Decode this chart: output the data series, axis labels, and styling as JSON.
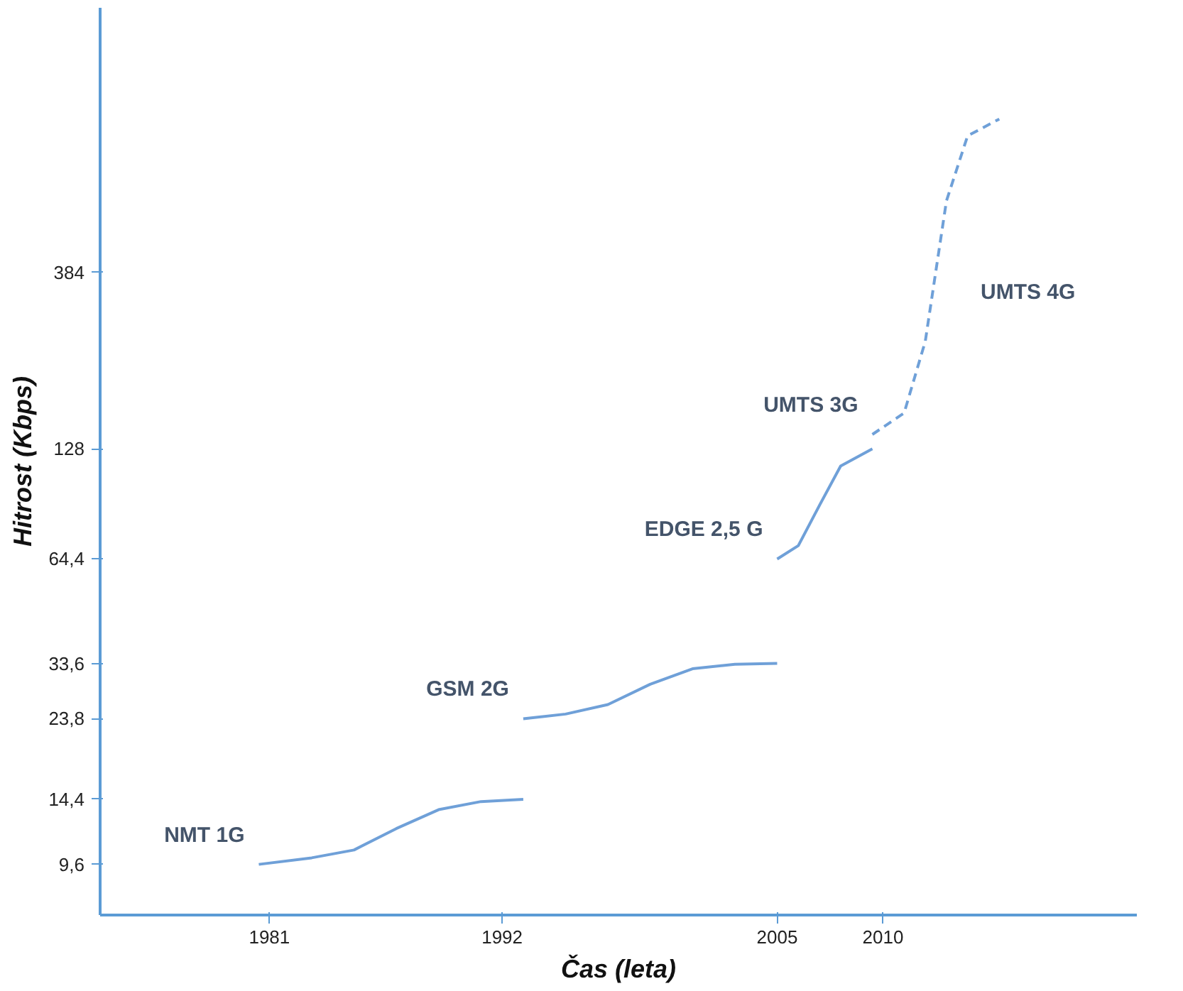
{
  "chart_data": {
    "type": "line",
    "xlabel": "Čas (leta)",
    "ylabel": "Hitrost (Kbps)",
    "log": "y",
    "grid": false,
    "marker": "none",
    "xlim": [
      1973,
      2022
    ],
    "xticks": [
      1981,
      1992,
      2005,
      2010
    ],
    "ylim": [
      7,
      2000
    ],
    "yticks": [
      {
        "value": 9.6,
        "label": "9,6"
      },
      {
        "value": 14.4,
        "label": "14,4"
      },
      {
        "value": 23.8,
        "label": "23,8"
      },
      {
        "value": 33.6,
        "label": "33,6"
      },
      {
        "value": 64.4,
        "label": "64,4"
      },
      128,
      384
    ],
    "series": [
      {
        "name": "NMT 1G",
        "color": "#6fa0d8",
        "line_style": "solid",
        "x": [
          1980.5,
          1983,
          1985,
          1987,
          1989,
          1991,
          1993
        ],
        "values": [
          9.6,
          10,
          10.5,
          12,
          13.5,
          14.2,
          14.4
        ]
      },
      {
        "name": "GSM 2G",
        "color": "#6fa0d8",
        "line_style": "solid",
        "x": [
          1993,
          1995,
          1997,
          1999,
          2001,
          2003,
          2005
        ],
        "values": [
          23.8,
          24.5,
          26,
          29.5,
          32.5,
          33.4,
          33.6
        ]
      },
      {
        "name": "EDGE 2,5 G",
        "color": "#6fa0d8",
        "line_style": "solid",
        "x": [
          2005,
          2006,
          2007,
          2008,
          2009.5
        ],
        "values": [
          64.4,
          70,
          90,
          115,
          128
        ]
      },
      {
        "name": "UMTS 3G",
        "color": "#6fa0d8",
        "line_style": "dashed",
        "x": [
          2009.5,
          2011,
          2012,
          2013,
          2014,
          2015.5
        ],
        "values": [
          140,
          160,
          250,
          600,
          900,
          1000
        ]
      }
    ],
    "annotations": [
      "UMTS 4G"
    ]
  }
}
